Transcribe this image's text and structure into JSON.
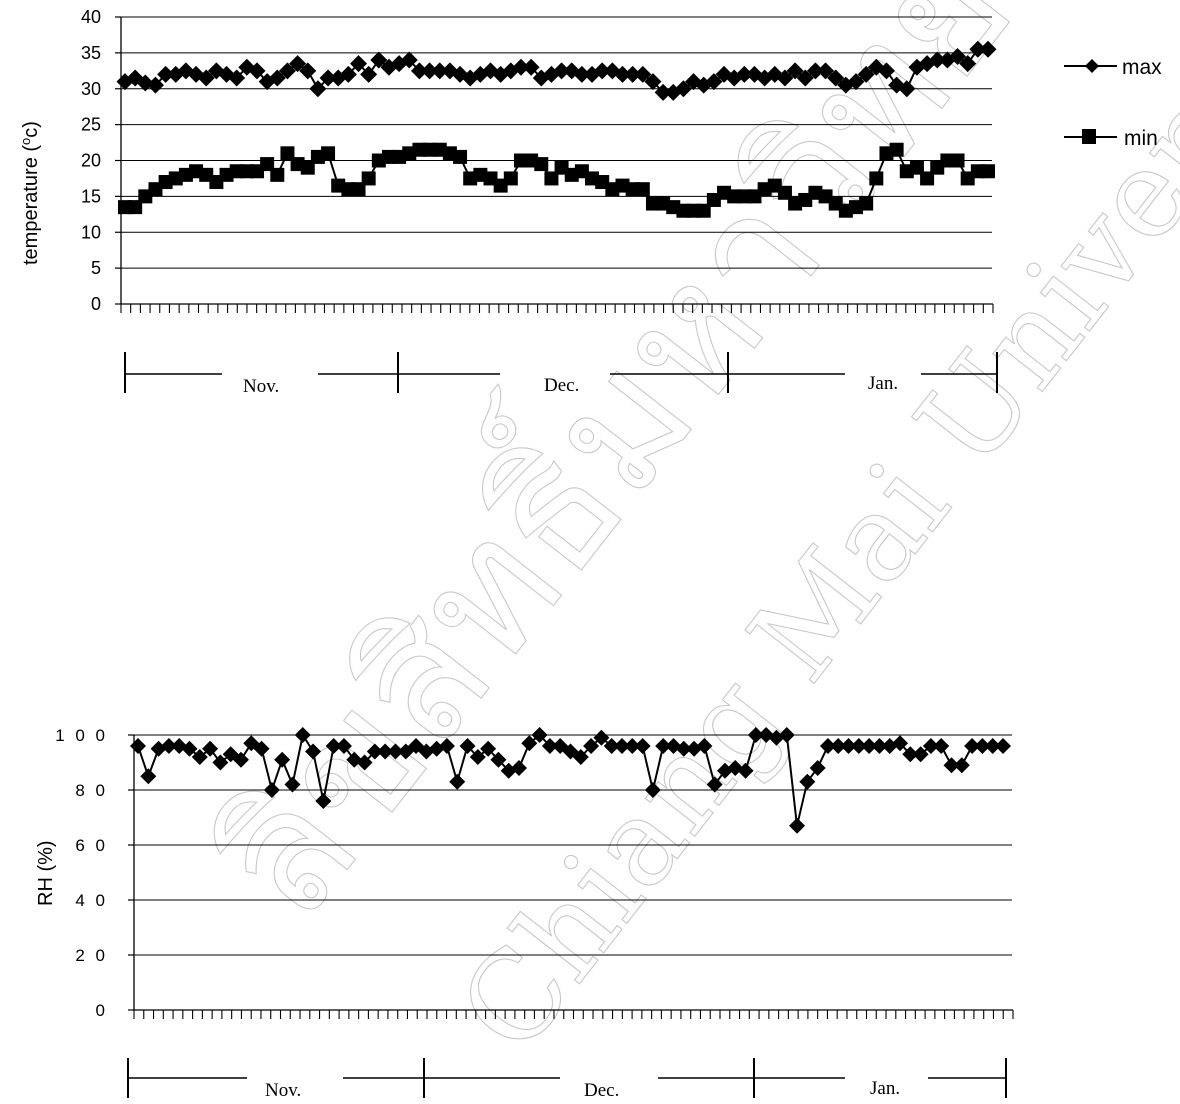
{
  "chart_data": [
    {
      "type": "line",
      "ylabel": "temperature (°c)",
      "ylabel_main": "temperature (",
      "ylabel_sup": "o",
      "ylabel_unit": "c)",
      "ylim": [
        0,
        40
      ],
      "yticks": [
        "0",
        "5",
        "10",
        "15",
        "20",
        "25",
        "30",
        "35",
        "40"
      ],
      "x_ticks_count": 91,
      "grid": true,
      "legend_position": "right",
      "months": [
        "Nov.",
        "Dec.",
        "Jan."
      ],
      "series": [
        {
          "name": "max",
          "marker": "diamond",
          "values": [
            31,
            31.5,
            30.8,
            30.5,
            32,
            32,
            32.5,
            32,
            31.5,
            32.5,
            32,
            31.5,
            33,
            32.5,
            31,
            31.5,
            32.5,
            33.5,
            32.5,
            30,
            31.5,
            31.5,
            32,
            33.5,
            32,
            34,
            33,
            33.5,
            34,
            32.5,
            32.5,
            32.5,
            32.5,
            32,
            31.5,
            32,
            32.5,
            32,
            32.5,
            33,
            33,
            31.5,
            32,
            32.5,
            32.5,
            32,
            32,
            32.5,
            32.5,
            32,
            32,
            32,
            31,
            29.5,
            29.5,
            30,
            31,
            30.5,
            31,
            32,
            31.5,
            32,
            32,
            31.5,
            32,
            31.5,
            32.5,
            31.5,
            32.5,
            32.5,
            31.5,
            30.5,
            31,
            32,
            33,
            32.5,
            30.5,
            30,
            33,
            33.5,
            34,
            34,
            34.5,
            33.5,
            35.5,
            35.5
          ]
        },
        {
          "name": "min",
          "marker": "square",
          "values": [
            13.5,
            13.5,
            15,
            16,
            17,
            17.5,
            18,
            18.5,
            18,
            17,
            18,
            18.5,
            18.5,
            18.5,
            19.5,
            18,
            21,
            19.5,
            19,
            20.5,
            21,
            16.5,
            16,
            16,
            17.5,
            20,
            20.5,
            20.5,
            21,
            21.5,
            21.5,
            21.5,
            21,
            20.5,
            17.5,
            18,
            17.5,
            16.5,
            17.5,
            20,
            20,
            19.5,
            17.5,
            19,
            18,
            18.5,
            17.5,
            17,
            16,
            16.5,
            16,
            16,
            14,
            14,
            13.5,
            13,
            13,
            13,
            14.5,
            15.5,
            15,
            15,
            15,
            16,
            16.5,
            15.5,
            14,
            14.5,
            15.5,
            15,
            14,
            13,
            13.5,
            14,
            17.5,
            21,
            21.5,
            18.5,
            19,
            17.5,
            19,
            20,
            20,
            17.5,
            18.5,
            18.5
          ]
        }
      ]
    },
    {
      "type": "line",
      "ylabel": "RH (%)",
      "ylim": [
        0,
        100
      ],
      "yticks": [
        "0",
        "2 0",
        "4 0",
        "6 0",
        "8 0",
        "1 0 0"
      ],
      "x_ticks_count": 91,
      "grid": true,
      "months": [
        "Nov.",
        "Dec.",
        "Jan."
      ],
      "series": [
        {
          "marker": "diamond",
          "values": [
            96,
            85,
            95,
            96,
            96,
            95,
            92,
            95,
            90,
            93,
            91,
            97,
            95,
            80,
            91,
            82,
            100,
            94,
            76,
            96,
            96,
            91,
            90,
            94,
            94,
            94,
            94,
            96,
            94,
            95,
            96,
            83,
            96,
            92,
            95,
            91,
            87,
            88,
            97,
            100,
            96,
            96,
            94,
            92,
            96,
            99,
            96,
            96,
            96,
            96,
            80,
            96,
            96,
            95,
            95,
            96,
            82,
            87,
            88,
            87,
            100,
            100,
            99,
            100,
            67,
            83,
            88,
            96,
            96,
            96,
            96,
            96,
            96,
            96,
            97,
            93,
            93,
            96,
            96,
            89,
            89,
            96,
            96,
            96,
            96
          ]
        }
      ]
    }
  ],
  "watermark": {
    "line1": "ลิขสิทธิ์มหาวิทยาลัยเชียงใหม่",
    "line2": "Chiang Mai University"
  }
}
